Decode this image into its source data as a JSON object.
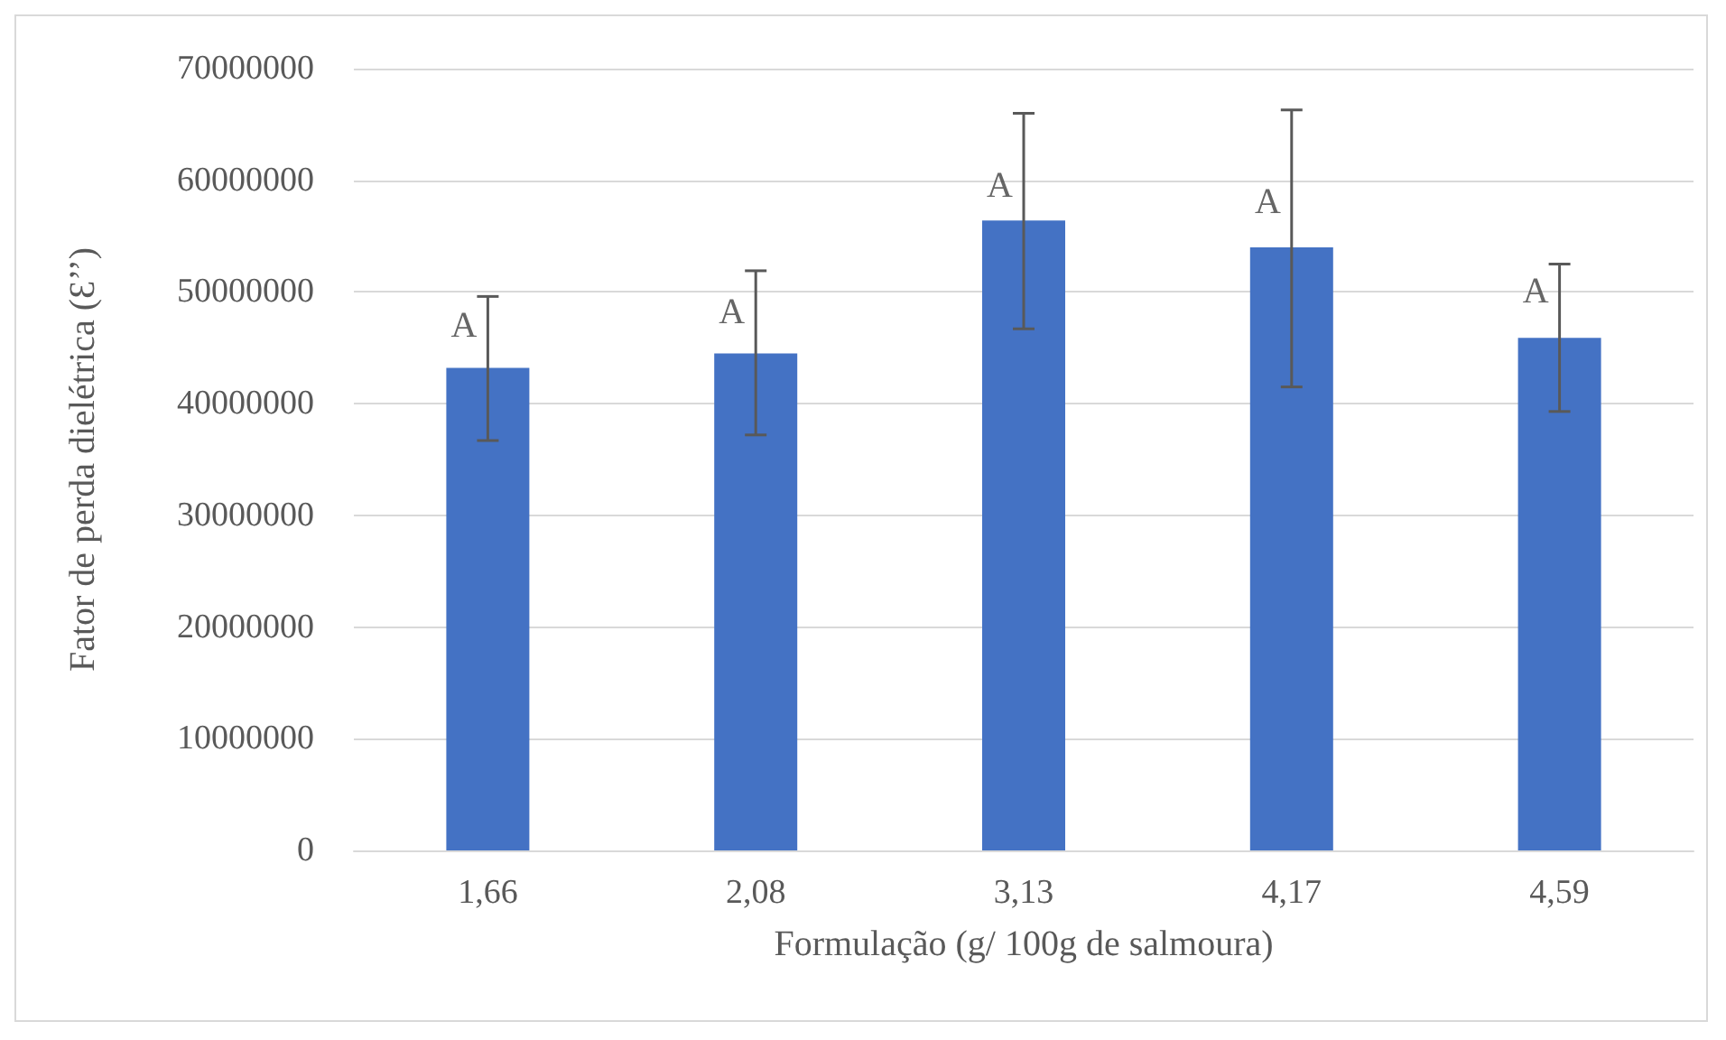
{
  "chart_data": {
    "type": "bar",
    "xlabel": "Formulação (g/ 100g de salmoura)",
    "ylabel": "Fator de perda dielétrica (Ɛ’’)",
    "categories": [
      "1,66",
      "2,08",
      "3,13",
      "4,17",
      "4,59"
    ],
    "values": [
      43200000,
      44500000,
      56400000,
      54000000,
      45900000
    ],
    "errors": [
      [
        36700000,
        49600000
      ],
      [
        37200000,
        51900000
      ],
      [
        46700000,
        66000000
      ],
      [
        41500000,
        66300000
      ],
      [
        39300000,
        52500000
      ]
    ],
    "color": "#4472c4",
    "ylim": [
      0,
      70000000
    ],
    "yticks": [
      0,
      10000000,
      20000000,
      30000000,
      40000000,
      50000000,
      60000000,
      70000000
    ],
    "grid": "y",
    "annotations": [
      {
        "text": "A",
        "x": "1,66",
        "y": 47000000
      },
      {
        "text": "A",
        "x": "2,08",
        "y": 48200000
      },
      {
        "text": "A",
        "x": "3,13",
        "y": 59500000
      },
      {
        "text": "A",
        "x": "4,17",
        "y": 58000000
      },
      {
        "text": "A",
        "x": "4,59",
        "y": 50000000
      }
    ]
  }
}
